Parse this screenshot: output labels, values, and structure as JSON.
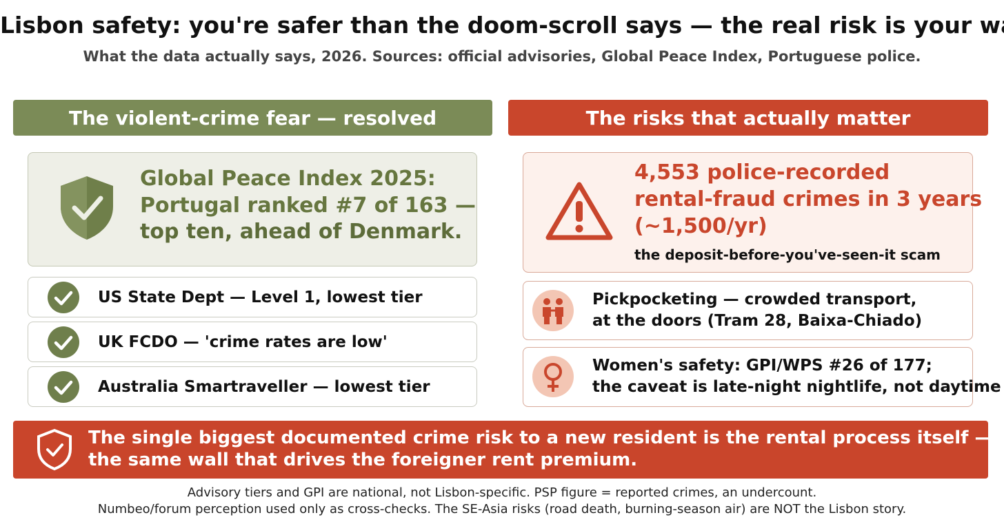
{
  "header": {
    "title": "Lisbon safety: you're safer than the doom-scroll says — the real risk is your wallet",
    "subtitle": "What the data actually says, 2026. Sources: official advisories, Global Peace Index, Portuguese police."
  },
  "left": {
    "heading": "The violent-crime fear — resolved",
    "feature": {
      "lines": [
        "Global Peace Index 2025:",
        "Portugal ranked #7 of 163 —",
        "top ten, ahead of Denmark."
      ]
    },
    "items": [
      "US State Dept — Level 1, lowest tier",
      "UK FCDO — 'crime rates are low'",
      "Australia Smartraveller — lowest tier"
    ]
  },
  "right": {
    "heading": "The risks that actually matter",
    "feature": {
      "lines": [
        "4,553 police-recorded",
        "rental-fraud crimes in 3 years",
        "(~1,500/yr)"
      ],
      "note": "the deposit-before-you've-seen-it scam"
    },
    "items": [
      {
        "lines": [
          "Pickpocketing — crowded transport,",
          "at the doors (Tram 28, Baixa-Chiado)"
        ]
      },
      {
        "lines": [
          "Women's safety: GPI/WPS #26 of 177;",
          "the caveat is late-night nightlife, not daytime"
        ]
      }
    ]
  },
  "banner": {
    "lines": [
      "The single biggest documented crime risk to a new resident is the rental process itself —",
      "the same wall that drives the foreigner rent premium."
    ]
  },
  "footer": {
    "lines": [
      "Advisory tiers and GPI are national, not Lisbon-specific. PSP figure = reported crimes, an undercount.",
      "Numbeo/forum perception used only as cross-checks. The SE-Asia risks (road death, burning-season air) are NOT the Lisbon story."
    ]
  }
}
